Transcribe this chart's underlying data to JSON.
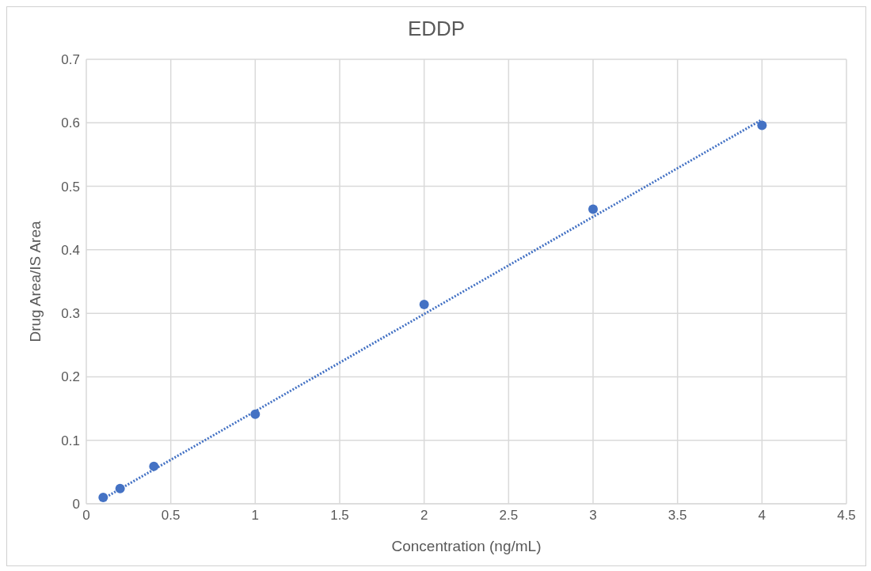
{
  "chart_data": {
    "type": "scatter",
    "title": "EDDP",
    "xlabel": "Concentration (ng/mL)",
    "ylabel": "Drug Area/IS Area",
    "series": [
      {
        "type": "scatter",
        "color": "#4472c4",
        "x": [
          0.1,
          0.2,
          0.4,
          1,
          2,
          3,
          4
        ],
        "values": [
          0.01,
          0.024,
          0.059,
          0.141,
          0.314,
          0.464,
          0.596
        ],
        "marker": "circle"
      },
      {
        "type": "line",
        "color": "#4472c4",
        "x": [
          0.1,
          4
        ],
        "values": [
          0.008,
          0.605
        ],
        "line_style": "dotted",
        "marker": "none"
      }
    ],
    "xlim": [
      0,
      4.5
    ],
    "xticks": [
      0,
      0.5,
      1,
      1.5,
      2,
      2.5,
      3,
      3.5,
      4,
      4.5
    ],
    "ylim": [
      0,
      0.7
    ],
    "yticks": [
      0,
      0.1,
      0.2,
      0.3,
      0.4,
      0.5,
      0.6,
      0.7
    ],
    "grid": true,
    "legend": false
  }
}
